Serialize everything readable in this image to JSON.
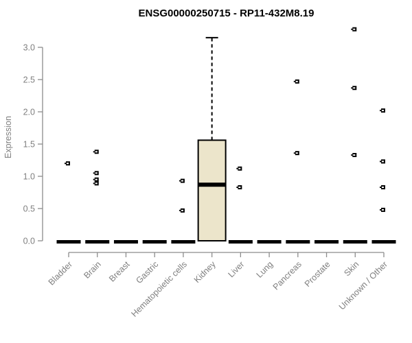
{
  "figure": {
    "background": "#ffffff"
  },
  "chart_data": {
    "type": "boxplot",
    "title": "ENSG00000250715 - RP11-432M8.19",
    "xlabel": "",
    "ylabel": "Expression",
    "ylim": [
      0,
      3.3
    ],
    "grid": false,
    "legend": null,
    "yticks": [
      0,
      0.5,
      1,
      1.5,
      2,
      2.5,
      3
    ],
    "ytick_labels": [
      "0.0",
      "0.5",
      "1.0",
      "1.5",
      "2.0",
      "2.5",
      "3.0"
    ],
    "categories": [
      "Bladder",
      "Brain",
      "Breast",
      "Gastric",
      "Hematopoietic cells",
      "Kidney",
      "Liver",
      "Lung",
      "Pancreas",
      "Prostate",
      "Skin",
      "Unknown / Other"
    ],
    "boxes": [
      {
        "category": "Bladder",
        "whisker_low": 0,
        "q1": 0,
        "median": 0,
        "q3": 0,
        "whisker_high": 0,
        "outliers": [
          1.2
        ]
      },
      {
        "category": "Brain",
        "whisker_low": 0,
        "q1": 0,
        "median": 0,
        "q3": 0,
        "whisker_high": 0,
        "outliers": [
          1.38,
          1.05,
          0.95,
          0.89
        ]
      },
      {
        "category": "Breast",
        "whisker_low": 0,
        "q1": 0,
        "median": 0,
        "q3": 0,
        "whisker_high": 0,
        "outliers": []
      },
      {
        "category": "Gastric",
        "whisker_low": 0,
        "q1": 0,
        "median": 0,
        "q3": 0,
        "whisker_high": 0,
        "outliers": []
      },
      {
        "category": "Hematopoietic cells",
        "whisker_low": 0,
        "q1": 0,
        "median": 0,
        "q3": 0,
        "whisker_high": 0,
        "outliers": [
          0.93,
          0.47
        ]
      },
      {
        "category": "Kidney",
        "whisker_low": 0,
        "q1": 0,
        "median": 0.87,
        "q3": 1.56,
        "whisker_high": 3.15,
        "outliers": []
      },
      {
        "category": "Liver",
        "whisker_low": 0,
        "q1": 0,
        "median": 0,
        "q3": 0,
        "whisker_high": 0,
        "outliers": [
          1.12,
          0.83
        ]
      },
      {
        "category": "Lung",
        "whisker_low": 0,
        "q1": 0,
        "median": 0,
        "q3": 0,
        "whisker_high": 0,
        "outliers": []
      },
      {
        "category": "Pancreas",
        "whisker_low": 0,
        "q1": 0,
        "median": 0,
        "q3": 0,
        "whisker_high": 0,
        "outliers": [
          2.47,
          1.36
        ]
      },
      {
        "category": "Prostate",
        "whisker_low": 0,
        "q1": 0,
        "median": 0,
        "q3": 0,
        "whisker_high": 0,
        "outliers": []
      },
      {
        "category": "Skin",
        "whisker_low": 0,
        "q1": 0,
        "median": 0,
        "q3": 0,
        "whisker_high": 0,
        "outliers": [
          3.28,
          2.37,
          1.33
        ]
      },
      {
        "category": "Unknown / Other",
        "whisker_low": 0,
        "q1": 0,
        "median": 0,
        "q3": 0,
        "whisker_high": 0,
        "outliers": [
          2.02,
          1.23,
          0.83,
          0.48
        ]
      }
    ],
    "colors": {
      "box_fill": "#ece5cb",
      "box_stroke": "#000000",
      "median": "#000000",
      "outlier": "#000000",
      "axis_text": "#7f7f7f",
      "axis_line": "#8c8c8c",
      "title": "#000000",
      "background": "#ffffff"
    }
  }
}
